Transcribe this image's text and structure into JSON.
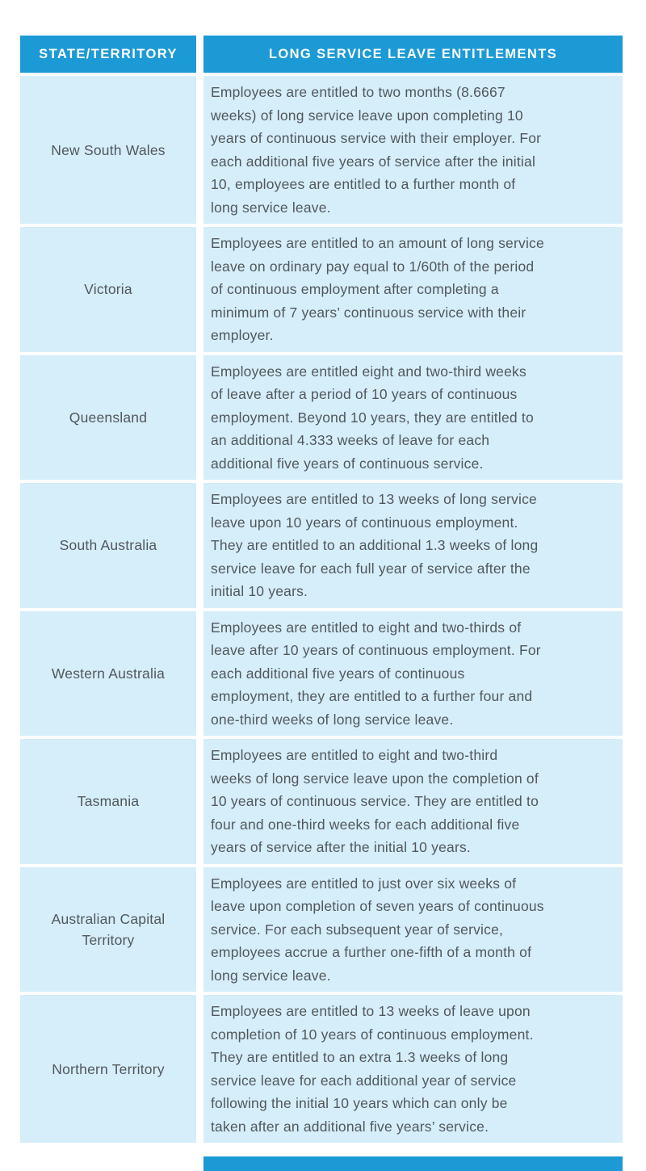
{
  "table": {
    "headers": [
      {
        "label": "STATE/TERRITORY"
      },
      {
        "label": "LONG SERVICE LEAVE ENTITLEMENTS"
      }
    ],
    "rows": [
      {
        "state": "New South Wales",
        "entitlement": "Employees are entitled to two months (8.6667\nweeks) of long service leave upon completing 10\nyears of continuous service with their employer. For\neach additional five years of service after the initial\n10, employees are entitled to a further month of\nlong service leave."
      },
      {
        "state": "Victoria",
        "entitlement": "Employees are entitled to an amount of long service\nleave on ordinary pay equal to 1/60th of the period\nof continuous employment after completing a\nminimum of 7 years’ continuous service with their\nemployer."
      },
      {
        "state": "Queensland",
        "entitlement": "Employees are entitled eight and two-third weeks\nof leave after a period of 10 years of continuous\nemployment. Beyond 10 years, they are entitled to\nan additional 4.333 weeks of leave for each\nadditional five years of continuous service."
      },
      {
        "state": "South Australia",
        "entitlement": "Employees are entitled to 13 weeks of long service\nleave upon 10 years of continuous employment.\nThey are entitled to an additional 1.3 weeks of long\nservice leave for each full year of service after the\ninitial 10 years."
      },
      {
        "state": "Western Australia",
        "entitlement": "Employees are entitled to eight and two-thirds of\nleave after 10 years of continuous employment. For\neach additional five years of continuous\nemployment, they are entitled to a further four and\none-third weeks of long service leave."
      },
      {
        "state": "Tasmania",
        "entitlement": "Employees are entitled to eight and two-third\nweeks of long service leave upon the completion of\n10 years of continuous service. They are entitled to\nfour and one-third weeks for each additional five\nyears of service after the initial 10 years."
      },
      {
        "state": "Australian Capital Territory",
        "entitlement": "Employees are entitled to just over six weeks of\nleave upon completion of seven years of continuous\nservice. For each subsequent year of service,\nemployees accrue a further one-fifth of a month of\nlong service leave."
      },
      {
        "state": "Northern Territory",
        "entitlement": "Employees are entitled to 13 weeks of leave upon\ncompletion of 10 years of continuous employment.\nThey are entitled to an extra 1.3 weeks of long\nservice leave for each additional year of service\nfollowing the initial 10 years which can only be\ntaken after an additional five years’ service."
      }
    ]
  },
  "colors": {
    "header_bg": "#1C9AD6",
    "header_text": "#FFFFFF",
    "row_bg": "#D5EEFA",
    "body_text": "#53575C",
    "page_bg": "#FFFFFF"
  }
}
